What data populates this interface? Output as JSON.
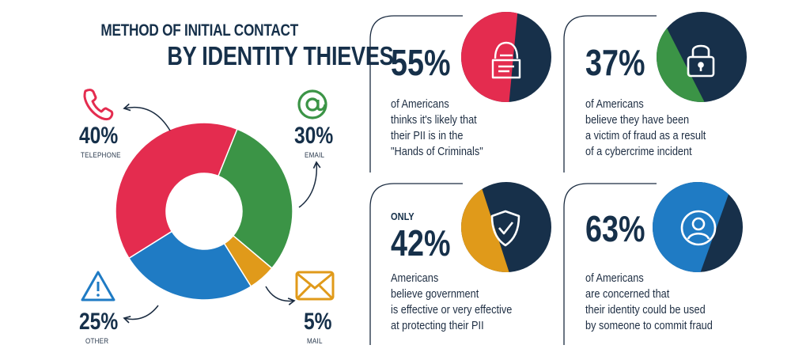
{
  "title": {
    "line1": "METHOD OF INITIAL CONTACT",
    "line2": "BY IDENTITY THIEVES"
  },
  "colors": {
    "red": "#e42c4f",
    "green": "#3b9446",
    "orange": "#e09a1a",
    "blue": "#1f7bc4",
    "navy": "#17304a"
  },
  "chart_data": {
    "type": "pie",
    "title": "",
    "slices": [
      {
        "label": "TELEPHONE",
        "value": 40,
        "display": "40%",
        "color": "#e42c4f",
        "icon": "phone-icon"
      },
      {
        "label": "EMAIL",
        "value": 30,
        "display": "30%",
        "color": "#3b9446",
        "icon": "at-sign-icon"
      },
      {
        "label": "MAIL",
        "value": 5,
        "display": "5%",
        "color": "#e09a1a",
        "icon": "envelope-icon"
      },
      {
        "label": "OTHER",
        "value": 25,
        "display": "25%",
        "color": "#1f7bc4",
        "icon": "warning-icon"
      }
    ]
  },
  "cards": [
    {
      "prefix": "",
      "percent": "55%",
      "value": 55,
      "color": "#e42c4f",
      "icon": "hacker-icon",
      "text": "of Americans\nthinks it's likely that\ntheir PII is in the\n\"Hands of Criminals\""
    },
    {
      "prefix": "",
      "percent": "37%",
      "value": 37,
      "color": "#3b9446",
      "icon": "padlock-icon",
      "text": "of Americans\nbelieve they have been\na victim of fraud as a result\nof a cybercrime incident"
    },
    {
      "prefix": "ONLY",
      "percent": "42%",
      "value": 42,
      "color": "#e09a1a",
      "icon": "shield-check-icon",
      "text": "Americans\nbelieve government\nis effective or very effective\nat protecting their PII"
    },
    {
      "prefix": "",
      "percent": "63%",
      "value": 63,
      "color": "#1f7bc4",
      "icon": "user-icon",
      "text": "of Americans\nare concerned that\ntheir identity could be used\nby someone to commit fraud"
    }
  ]
}
